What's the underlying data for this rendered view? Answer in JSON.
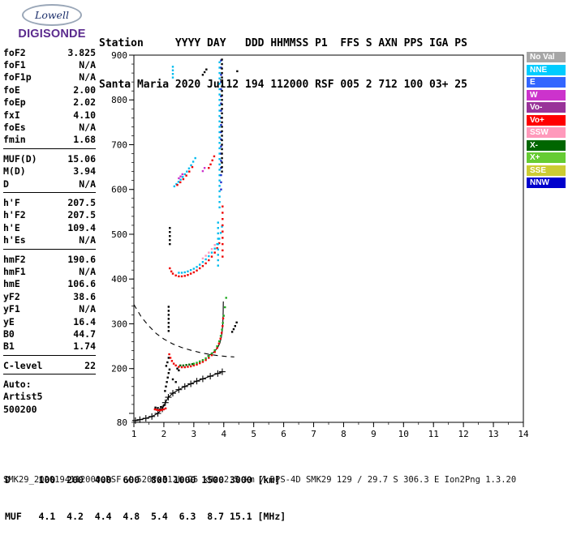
{
  "logo": {
    "line1": "Lowell",
    "line2": "DIGISONDE"
  },
  "header": {
    "line1": "Station     YYYY DAY   DDD HHMMSS P1  FFS S AXN PPS IGA PS",
    "line2": "Santa Maria 2020 Jul12 194 112000 RSF 005 2 712 100 03+ 25"
  },
  "params": {
    "rows": [
      {
        "label": "foF2",
        "value": "3.825"
      },
      {
        "label": "foF1",
        "value": "N/A"
      },
      {
        "label": "foF1p",
        "value": "N/A"
      },
      {
        "label": "foE",
        "value": "2.00"
      },
      {
        "label": "foEp",
        "value": "2.02"
      },
      {
        "label": "fxI",
        "value": "4.10"
      },
      {
        "label": "foEs",
        "value": "N/A"
      },
      {
        "label": "fmin",
        "value": "1.68"
      },
      {
        "rule": true
      },
      {
        "label": "MUF(D)",
        "value": "15.06"
      },
      {
        "label": "M(D)",
        "value": "3.94"
      },
      {
        "label": "D",
        "value": "N/A"
      },
      {
        "rule": true
      },
      {
        "label": "h'F",
        "value": "207.5"
      },
      {
        "label": "h'F2",
        "value": "207.5"
      },
      {
        "label": "h'E",
        "value": "109.4"
      },
      {
        "label": "h'Es",
        "value": "N/A"
      },
      {
        "rule": true
      },
      {
        "label": "hmF2",
        "value": "190.6"
      },
      {
        "label": "hmF1",
        "value": "N/A"
      },
      {
        "label": "hmE",
        "value": "106.6"
      },
      {
        "label": "yF2",
        "value": "38.6"
      },
      {
        "label": "yF1",
        "value": "N/A"
      },
      {
        "label": "yE",
        "value": "16.4"
      },
      {
        "label": "B0",
        "value": "44.7"
      },
      {
        "label": "B1",
        "value": "1.74"
      },
      {
        "rule": true
      },
      {
        "label": "C-level",
        "value": "22"
      },
      {
        "rule": true
      },
      {
        "label": "Auto:",
        "value": ""
      },
      {
        "label": "Artist5",
        "value": ""
      },
      {
        "label": "500200",
        "value": ""
      }
    ]
  },
  "legend": {
    "position": "right",
    "items": [
      {
        "label": "No Val",
        "color": "#A6A6A6"
      },
      {
        "label": "NNE",
        "color": "#00CCFF"
      },
      {
        "label": "E",
        "color": "#3366FF"
      },
      {
        "label": "W",
        "color": "#CC33CC"
      },
      {
        "label": "Vo-",
        "color": "#993399"
      },
      {
        "label": "Vo+",
        "color": "#FF0000"
      },
      {
        "label": "SSW",
        "color": "#FF99BB"
      },
      {
        "label": "X-",
        "color": "#006600"
      },
      {
        "label": "X+",
        "color": "#66CC33"
      },
      {
        "label": "SSE",
        "color": "#CCCC33"
      },
      {
        "label": "NNW",
        "color": "#0000CC"
      }
    ]
  },
  "footer": {
    "d_line": "D     100  200  400  600  800 1000 1500 3000 [km]",
    "muf_line": "MUF   4.1  4.2  4.4  4.8  5.4  6.3  8.7 15.1 [MHz]",
    "status": "SMK29_2020194112000.RSF / 520fx512h 25 kHz 2.5 km / DPS-4D SMK29 129 / 29.7 S 306.3 E Ion2Png 1.3.20"
  },
  "chart_data": {
    "type": "scatter",
    "x_axis": {
      "min": 1,
      "max": 14,
      "tick_labels": [
        1,
        2,
        3,
        4,
        5,
        6,
        7,
        8,
        9,
        10,
        11,
        12,
        13,
        14
      ],
      "minor_step": 0.5
    },
    "y_axis": {
      "min": 80,
      "max": 900,
      "tick_labels": [
        900,
        800,
        700,
        600,
        500,
        400,
        300,
        200,
        80
      ],
      "major_step": 100,
      "minor_step": 20
    },
    "grid": false,
    "series": [
      {
        "name": "true-height-profile",
        "kind": "plusline",
        "color": "#000000",
        "points": [
          [
            1.05,
            84
          ],
          [
            1.2,
            86
          ],
          [
            1.4,
            89
          ],
          [
            1.6,
            93
          ],
          [
            1.8,
            100
          ],
          [
            1.95,
            110
          ],
          [
            2.05,
            124
          ],
          [
            2.15,
            136
          ],
          [
            2.3,
            145
          ],
          [
            2.5,
            153
          ],
          [
            2.7,
            160
          ],
          [
            2.9,
            166
          ],
          [
            3.1,
            172
          ],
          [
            3.3,
            177
          ],
          [
            3.55,
            183
          ],
          [
            3.8,
            189
          ],
          [
            3.95,
            193
          ]
        ]
      },
      {
        "name": "transmission-curve",
        "kind": "dashline",
        "color": "#000000",
        "points": [
          [
            1.0,
            343
          ],
          [
            1.25,
            315
          ],
          [
            1.5,
            295
          ],
          [
            1.75,
            278
          ],
          [
            2.0,
            266
          ],
          [
            2.3,
            255
          ],
          [
            2.6,
            247
          ],
          [
            2.9,
            241
          ],
          [
            3.2,
            236
          ],
          [
            3.5,
            232
          ],
          [
            3.8,
            229
          ],
          [
            4.1,
            227
          ],
          [
            4.35,
            226
          ]
        ]
      },
      {
        "name": "o-trace-fit",
        "kind": "line",
        "color": "#000000",
        "points": [
          [
            3.45,
            228
          ],
          [
            3.6,
            233
          ],
          [
            3.7,
            239
          ],
          [
            3.8,
            247
          ],
          [
            3.87,
            257
          ],
          [
            3.92,
            270
          ],
          [
            3.95,
            285
          ],
          [
            3.97,
            303
          ],
          [
            3.98,
            325
          ],
          [
            3.985,
            350
          ]
        ]
      },
      {
        "name": "f-trace-1hop-o",
        "kind": "scatter",
        "color": "#EE0000",
        "points": [
          [
            2.18,
            232
          ],
          [
            2.22,
            224
          ],
          [
            2.27,
            217
          ],
          [
            2.33,
            211
          ],
          [
            2.4,
            207
          ],
          [
            2.5,
            204
          ],
          [
            2.6,
            203
          ],
          [
            2.7,
            203
          ],
          [
            2.8,
            204
          ],
          [
            2.9,
            205
          ],
          [
            3.0,
            207
          ],
          [
            3.1,
            209
          ],
          [
            3.2,
            212
          ],
          [
            3.3,
            215
          ],
          [
            3.4,
            219
          ],
          [
            3.5,
            224
          ],
          [
            3.6,
            230
          ],
          [
            3.7,
            237
          ],
          [
            3.78,
            246
          ],
          [
            3.84,
            256
          ],
          [
            3.89,
            267
          ],
          [
            3.93,
            280
          ],
          [
            3.96,
            295
          ],
          [
            3.98,
            312
          ]
        ]
      },
      {
        "name": "f-trace-1hop-x",
        "kind": "scatter",
        "color": "#22AA22",
        "points": [
          [
            3.0,
            211
          ],
          [
            3.1,
            213
          ],
          [
            3.2,
            216
          ],
          [
            3.3,
            219
          ],
          [
            3.4,
            223
          ],
          [
            3.5,
            228
          ],
          [
            3.6,
            234
          ],
          [
            3.7,
            241
          ],
          [
            3.78,
            250
          ],
          [
            3.85,
            261
          ],
          [
            3.9,
            273
          ],
          [
            3.94,
            287
          ],
          [
            3.97,
            302
          ],
          [
            4.0,
            318
          ],
          [
            4.04,
            337
          ],
          [
            4.08,
            358
          ]
        ]
      },
      {
        "name": "f-trace-1hop-xminus",
        "kind": "scatter",
        "color": "#006600",
        "points": [
          [
            2.55,
            207
          ],
          [
            2.65,
            207
          ],
          [
            2.75,
            208
          ],
          [
            2.85,
            209
          ],
          [
            2.95,
            210
          ]
        ]
      },
      {
        "name": "f-trace-2hop-o",
        "kind": "scatter",
        "color": "#EE0000",
        "points": [
          [
            2.2,
            424
          ],
          [
            2.25,
            417
          ],
          [
            2.3,
            412
          ],
          [
            2.4,
            408
          ],
          [
            2.5,
            406
          ],
          [
            2.6,
            406
          ],
          [
            2.7,
            407
          ],
          [
            2.8,
            409
          ],
          [
            2.9,
            412
          ],
          [
            3.0,
            415
          ],
          [
            3.1,
            419
          ],
          [
            3.2,
            424
          ],
          [
            3.3,
            429
          ],
          [
            3.4,
            435
          ],
          [
            3.5,
            442
          ],
          [
            3.6,
            450
          ],
          [
            3.7,
            459
          ],
          [
            3.78,
            469
          ],
          [
            3.85,
            480
          ]
        ]
      },
      {
        "name": "f-trace-2hop-nne",
        "kind": "scatter",
        "color": "#00BBEE",
        "points": [
          [
            2.5,
            414
          ],
          [
            2.6,
            414
          ],
          [
            2.7,
            415
          ],
          [
            2.8,
            417
          ],
          [
            2.9,
            420
          ],
          [
            3.0,
            423
          ],
          [
            3.1,
            427
          ],
          [
            3.2,
            432
          ],
          [
            3.3,
            438
          ],
          [
            3.4,
            444
          ],
          [
            3.5,
            451
          ],
          [
            3.6,
            459
          ],
          [
            3.7,
            468
          ],
          [
            3.78,
            478
          ],
          [
            3.85,
            490
          ],
          [
            3.9,
            503
          ],
          [
            3.94,
            517
          ]
        ]
      },
      {
        "name": "f-trace-2hop-ssw",
        "kind": "scatter",
        "color": "#FF99BB",
        "points": [
          [
            3.3,
            446
          ],
          [
            3.4,
            452
          ],
          [
            3.5,
            459
          ],
          [
            3.6,
            467
          ],
          [
            3.7,
            476
          ]
        ]
      },
      {
        "name": "f-trace-3hop-nne",
        "kind": "scatter",
        "color": "#00BBEE",
        "points": [
          [
            2.35,
            607
          ],
          [
            2.42,
            612
          ],
          [
            2.49,
            617
          ],
          [
            2.56,
            622
          ],
          [
            2.63,
            628
          ],
          [
            2.7,
            634
          ],
          [
            2.77,
            640
          ],
          [
            2.84,
            647
          ],
          [
            2.91,
            654
          ],
          [
            2.98,
            662
          ],
          [
            3.05,
            670
          ]
        ]
      },
      {
        "name": "f-trace-3hop-o",
        "kind": "scatter",
        "color": "#EE0000",
        "points": [
          [
            2.45,
            610
          ],
          [
            2.55,
            616
          ],
          [
            2.65,
            623
          ],
          [
            2.75,
            631
          ],
          [
            2.85,
            640
          ],
          [
            2.95,
            650
          ],
          [
            3.5,
            648
          ],
          [
            3.56,
            656
          ],
          [
            3.62,
            665
          ],
          [
            3.68,
            674
          ]
        ]
      },
      {
        "name": "f-trace-3hop-w",
        "kind": "scatter",
        "color": "#CC33CC",
        "points": [
          [
            2.5,
            625
          ],
          [
            2.56,
            629
          ],
          [
            2.62,
            634
          ],
          [
            3.3,
            641
          ],
          [
            3.36,
            648
          ]
        ]
      },
      {
        "name": "spread-f-nne",
        "kind": "vdots",
        "color": "#00BBEE",
        "f": 3.86,
        "from": 560,
        "to": 893,
        "step": 12
      },
      {
        "name": "spread-f-nnw",
        "kind": "vdots",
        "color": "#2233CC",
        "f": 3.91,
        "from": 600,
        "to": 900,
        "step": 16
      },
      {
        "name": "spread-f-black",
        "kind": "vdots",
        "color": "#000000",
        "f": 3.94,
        "from": 640,
        "to": 896,
        "step": 10
      },
      {
        "name": "spread-f-o",
        "kind": "vdots",
        "color": "#EE0000",
        "f": 3.96,
        "from": 450,
        "to": 566,
        "step": 14
      },
      {
        "name": "spread-f-low-nne",
        "kind": "vdots",
        "color": "#00BBEE",
        "f": 3.81,
        "from": 430,
        "to": 532,
        "step": 12
      },
      {
        "name": "e-trace-o",
        "kind": "scatter",
        "color": "#EE0000",
        "points": [
          [
            1.7,
            109
          ],
          [
            1.76,
            108
          ],
          [
            1.82,
            107
          ],
          [
            1.88,
            107
          ],
          [
            1.94,
            108
          ],
          [
            2.0,
            109
          ],
          [
            2.06,
            111
          ]
        ]
      },
      {
        "name": "e-region-noise",
        "kind": "scatter",
        "color": "#000000",
        "points": [
          [
            1.72,
            113
          ],
          [
            1.8,
            112
          ],
          [
            1.9,
            114
          ],
          [
            2.0,
            118
          ],
          [
            2.04,
            150
          ],
          [
            2.07,
            160
          ],
          [
            2.1,
            170
          ],
          [
            2.13,
            180
          ],
          [
            2.16,
            190
          ],
          [
            2.19,
            198
          ],
          [
            2.3,
            176
          ],
          [
            2.4,
            170
          ],
          [
            2.45,
            200
          ],
          [
            2.5,
            196
          ],
          [
            2.08,
            206
          ],
          [
            2.12,
            214
          ],
          [
            2.16,
            224
          ]
        ]
      },
      {
        "name": "mid-noise",
        "kind": "vdots",
        "color": "#000000",
        "f": 2.16,
        "from": 284,
        "to": 340,
        "step": 9
      },
      {
        "name": "hop2-strand",
        "kind": "vdots",
        "color": "#000000",
        "f": 2.2,
        "from": 478,
        "to": 522,
        "step": 9
      },
      {
        "name": "top-specks-nne",
        "kind": "vdots",
        "color": "#00BBEE",
        "f": 2.3,
        "from": 850,
        "to": 874,
        "step": 8
      },
      {
        "name": "top-specks-black",
        "kind": "scatter",
        "color": "#000000",
        "points": [
          [
            3.3,
            856
          ],
          [
            3.36,
            862
          ],
          [
            3.42,
            868
          ],
          [
            4.45,
            864
          ]
        ]
      },
      {
        "name": "x-cusp-extra",
        "kind": "scatter",
        "color": "#000000",
        "points": [
          [
            4.28,
            282
          ],
          [
            4.33,
            288
          ],
          [
            4.38,
            295
          ],
          [
            4.43,
            303
          ]
        ]
      }
    ]
  }
}
